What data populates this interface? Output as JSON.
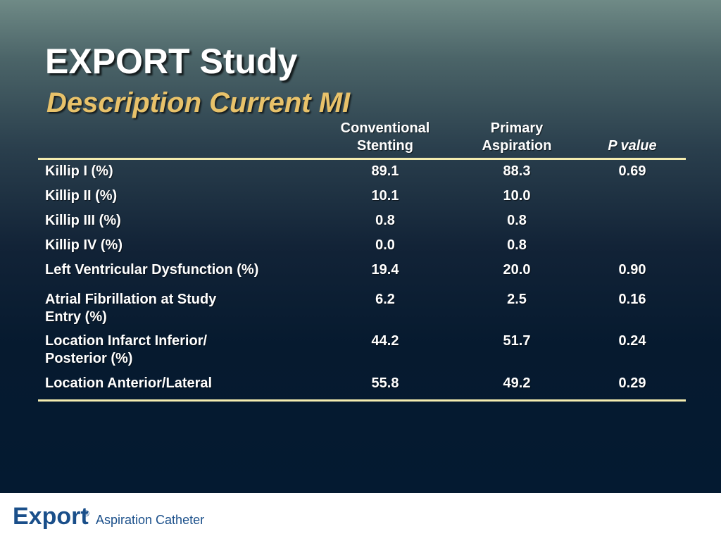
{
  "title": "EXPORT Study",
  "subtitle": "Description Current MI",
  "table": {
    "headers": {
      "col1_line1": "Conventional",
      "col1_line2": "Stenting",
      "col2_line1": "Primary",
      "col2_line2": "Aspiration",
      "col3": "P value"
    },
    "rows": [
      {
        "label_line1": "Killip I (%)",
        "label_line2": "",
        "conventional": "89.1",
        "aspiration": "88.3",
        "p": "0.69"
      },
      {
        "label_line1": "Killip II (%)",
        "label_line2": "",
        "conventional": "10.1",
        "aspiration": "10.0",
        "p": ""
      },
      {
        "label_line1": "Killip III (%)",
        "label_line2": "",
        "conventional": "0.8",
        "aspiration": "0.8",
        "p": ""
      },
      {
        "label_line1": "Killip IV (%)",
        "label_line2": "",
        "conventional": "0.0",
        "aspiration": "0.8",
        "p": ""
      },
      {
        "label_line1": "Left Ventricular Dysfunction (%)",
        "label_line2": "",
        "conventional": "19.4",
        "aspiration": "20.0",
        "p": "0.90"
      },
      {
        "label_line1": "Atrial Fibrillation at Study",
        "label_line2": "Entry (%)",
        "conventional": "6.2",
        "aspiration": "2.5",
        "p": "0.16"
      },
      {
        "label_line1": "Location Infarct Inferior/",
        "label_line2": "Posterior (%)",
        "conventional": "44.2",
        "aspiration": "51.7",
        "p": "0.24"
      },
      {
        "label_line1": "Location Anterior/Lateral",
        "label_line2": "",
        "conventional": "55.8",
        "aspiration": "49.2",
        "p": "0.29"
      }
    ]
  },
  "footer": {
    "brand": "Export",
    "registered": "®",
    "tagline": "Aspiration Catheter"
  },
  "colors": {
    "title": "#ffffff",
    "subtitle": "#e8c26a",
    "rule": "#f4ecb0",
    "brand": "#1a4f8a"
  }
}
